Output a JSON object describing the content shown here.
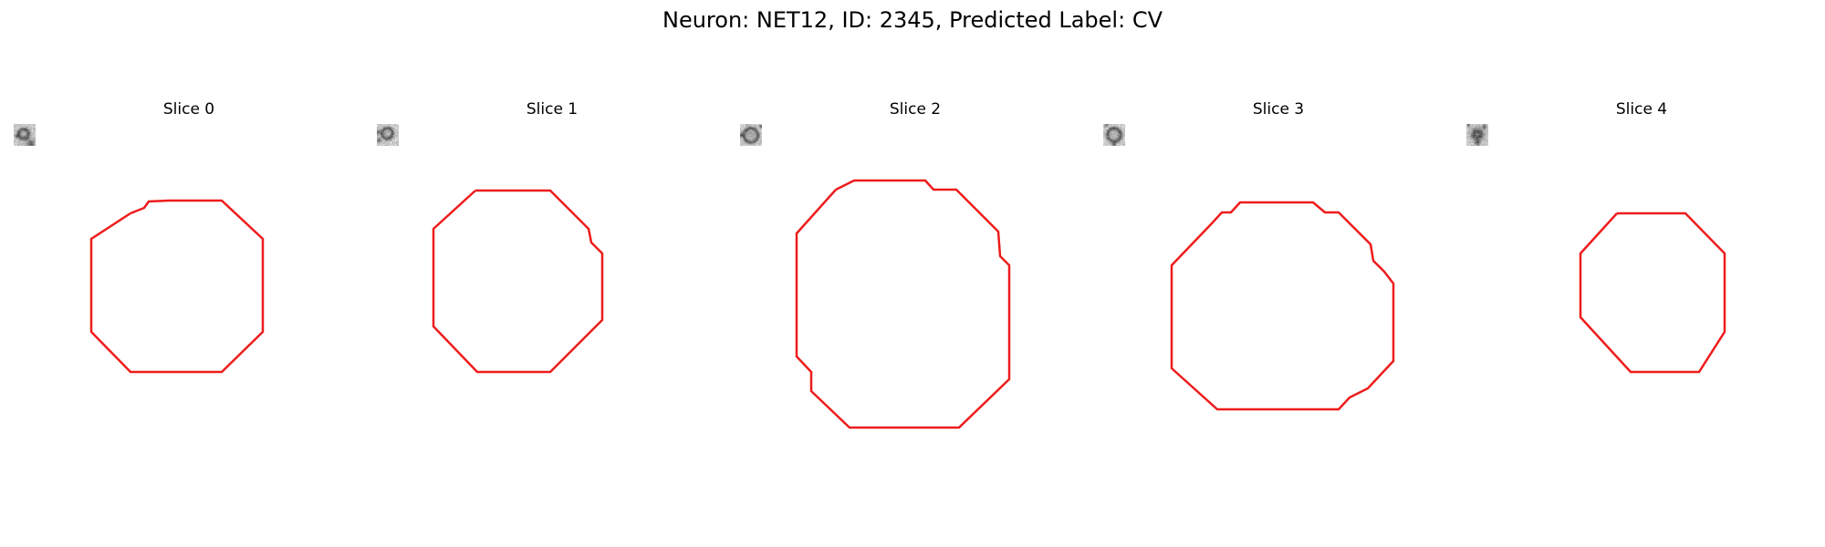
{
  "figure": {
    "title": "Neuron: NET12, ID: 2345, Predicted Label: CV"
  },
  "colors": {
    "contour": "#ee1c1c",
    "background": "#ffffff"
  },
  "slices": [
    {
      "label": "Slice 0"
    },
    {
      "label": "Slice 1"
    },
    {
      "label": "Slice 2"
    },
    {
      "label": "Slice 3"
    },
    {
      "label": "Slice 4"
    }
  ]
}
